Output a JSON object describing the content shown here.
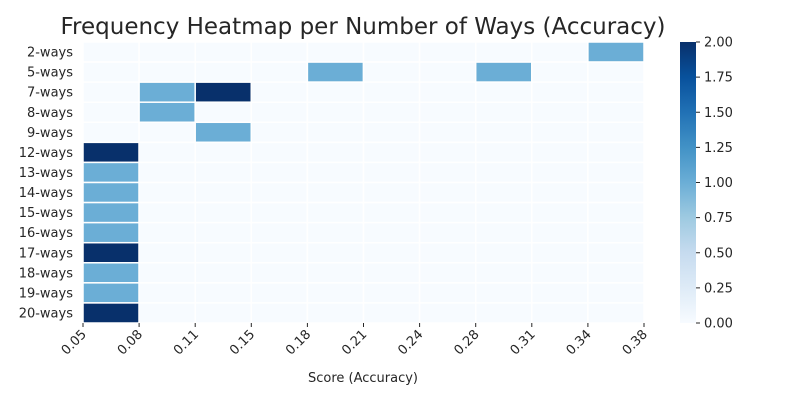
{
  "chart_data": {
    "type": "heatmap",
    "title": "Frequency Heatmap per Number of Ways (Accuracy)",
    "xlabel": "Score (Accuracy)",
    "ylabel": "",
    "x_tick_labels": [
      "0.05",
      "0.08",
      "0.11",
      "0.15",
      "0.18",
      "0.21",
      "0.24",
      "0.28",
      "0.31",
      "0.34",
      "0.38"
    ],
    "y_categories": [
      "2-ways",
      "5-ways",
      "7-ways",
      "8-ways",
      "9-ways",
      "12-ways",
      "13-ways",
      "14-ways",
      "15-ways",
      "16-ways",
      "17-ways",
      "18-ways",
      "19-ways",
      "20-ways"
    ],
    "bins": 10,
    "values": [
      [
        0,
        0,
        0,
        0,
        0,
        0,
        0,
        0,
        0,
        1
      ],
      [
        0,
        0,
        0,
        0,
        1,
        0,
        0,
        1,
        0,
        0
      ],
      [
        0,
        1,
        2,
        0,
        0,
        0,
        0,
        0,
        0,
        0
      ],
      [
        0,
        1,
        0,
        0,
        0,
        0,
        0,
        0,
        0,
        0
      ],
      [
        0,
        0,
        1,
        0,
        0,
        0,
        0,
        0,
        0,
        0
      ],
      [
        2,
        0,
        0,
        0,
        0,
        0,
        0,
        0,
        0,
        0
      ],
      [
        1,
        0,
        0,
        0,
        0,
        0,
        0,
        0,
        0,
        0
      ],
      [
        1,
        0,
        0,
        0,
        0,
        0,
        0,
        0,
        0,
        0
      ],
      [
        1,
        0,
        0,
        0,
        0,
        0,
        0,
        0,
        0,
        0
      ],
      [
        1,
        0,
        0,
        0,
        0,
        0,
        0,
        0,
        0,
        0
      ],
      [
        2,
        0,
        0,
        0,
        0,
        0,
        0,
        0,
        0,
        0
      ],
      [
        1,
        0,
        0,
        0,
        0,
        0,
        0,
        0,
        0,
        0
      ],
      [
        1,
        0,
        0,
        0,
        0,
        0,
        0,
        0,
        0,
        0
      ],
      [
        2,
        0,
        0,
        0,
        0,
        0,
        0,
        0,
        0,
        0
      ]
    ],
    "colorbar": {
      "vmin": 0,
      "vmax": 2,
      "ticks": [
        "0.00",
        "0.25",
        "0.50",
        "0.75",
        "1.00",
        "1.25",
        "1.50",
        "1.75",
        "2.00"
      ],
      "colormap": "Blues"
    },
    "grid": false,
    "cell_border_color": "#ffffff"
  }
}
